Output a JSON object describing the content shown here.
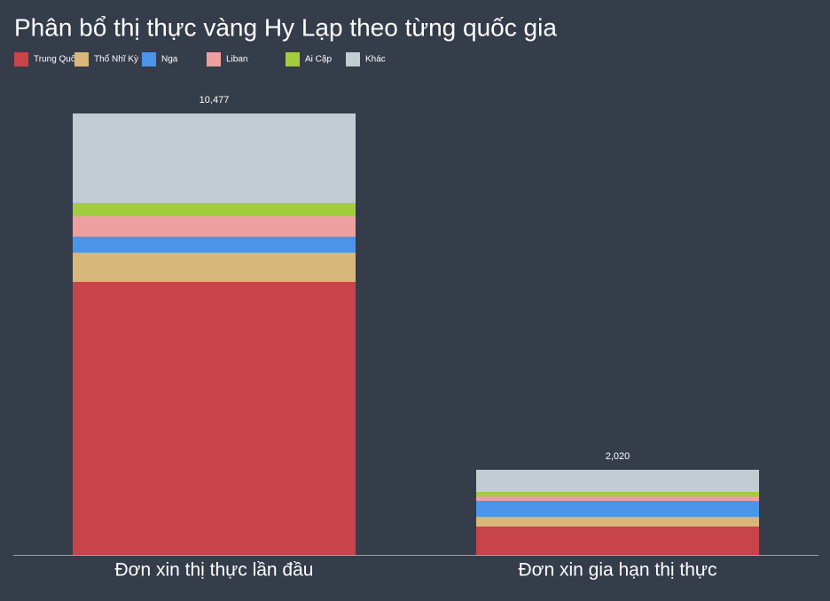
{
  "chart_data": {
    "type": "stacked-bar",
    "title": "Phân bổ thị thực vàng Hy Lạp theo từng quốc gia",
    "categories": [
      "Đơn xin thị thực lần đầu",
      "Đơn xin gia hạn thị thực"
    ],
    "total_labels": [
      "10,477",
      "2,020"
    ],
    "series": [
      {
        "name": "Trung Quốc",
        "color": "#c8444b",
        "values": [
          6480,
          673
        ]
      },
      {
        "name": "Thổ Nhĩ Kỳ",
        "color": "#d8b77a",
        "values": [
          694,
          231
        ]
      },
      {
        "name": "Nga",
        "color": "#4a95e9",
        "values": [
          379,
          379
        ]
      },
      {
        "name": "Liban",
        "color": "#eea0a0",
        "values": [
          484,
          105
        ]
      },
      {
        "name": "Ai Cập",
        "color": "#a3cc3f",
        "values": [
          316,
          105
        ]
      },
      {
        "name": "Khác",
        "color": "#c4ccd3",
        "values": [
          2124,
          527
        ]
      }
    ]
  }
}
